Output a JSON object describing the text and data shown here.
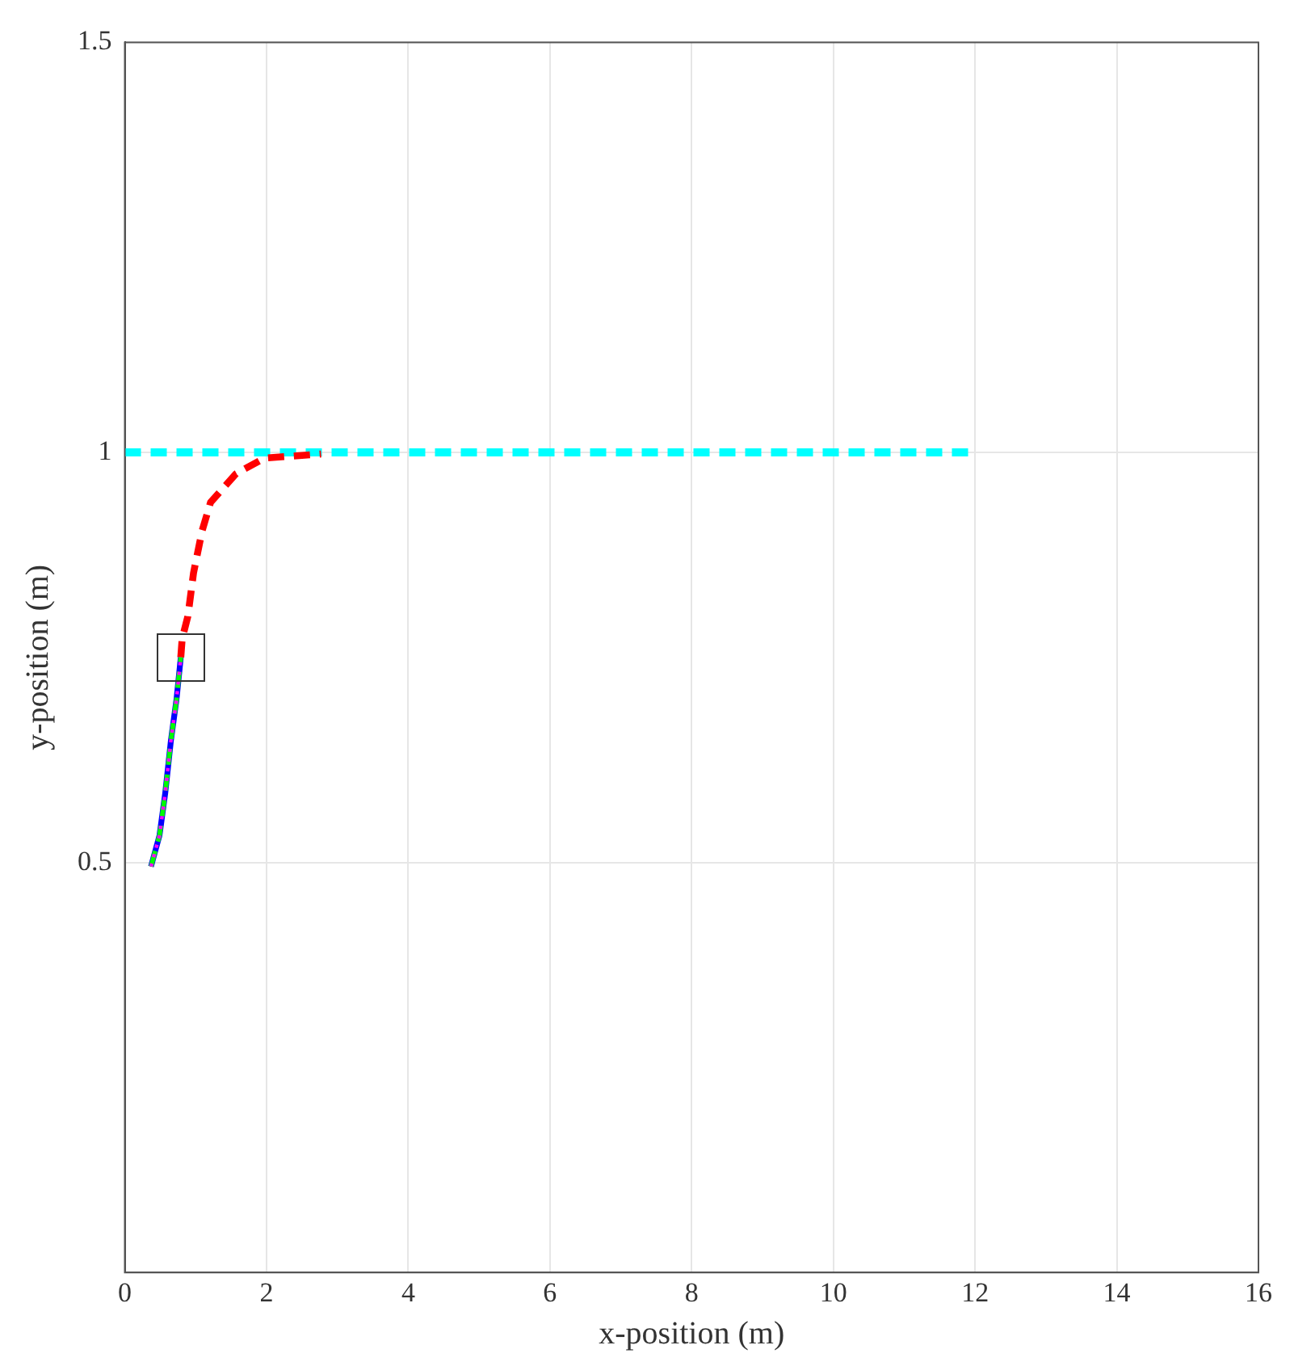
{
  "chart_data": {
    "type": "line",
    "xlabel": "x-position (m)",
    "ylabel": "y-position (m)",
    "xlim": [
      0,
      16
    ],
    "xticks": [
      0,
      2,
      4,
      6,
      8,
      10,
      12,
      14,
      16
    ],
    "ylim": [
      0,
      1.5
    ],
    "yticks": [
      0.5,
      1,
      1.5
    ],
    "grid": true,
    "legend": false,
    "marker": "none",
    "series": [
      {
        "color": "#00ffff",
        "line_style": "dashed",
        "x": [
          0,
          12
        ],
        "values": [
          1,
          1
        ]
      },
      {
        "color": "#ff0000",
        "line_style": "dashed",
        "x": [
          0.79,
          0.81,
          0.89,
          0.97,
          1.09,
          1.21,
          1.57,
          1.97,
          2.77
        ],
        "values": [
          0.75,
          0.773,
          0.8,
          0.853,
          0.904,
          0.939,
          0.974,
          0.993,
          0.998
        ]
      },
      {
        "color": "#0000ff",
        "line_style": "solid",
        "x": [
          0.37,
          0.49,
          0.57,
          0.65,
          0.73,
          0.79
        ],
        "values": [
          0.495,
          0.533,
          0.584,
          0.648,
          0.699,
          0.75
        ]
      },
      {
        "color": "#00ff00",
        "line_style": "dashed",
        "x": [
          0.37,
          0.49,
          0.57,
          0.65,
          0.73,
          0.79
        ],
        "values": [
          0.495,
          0.533,
          0.584,
          0.648,
          0.699,
          0.75
        ]
      },
      {
        "color": "#ff00ff",
        "line_style": "dotted",
        "x": [
          0.37,
          0.49,
          0.57,
          0.65,
          0.73,
          0.79
        ],
        "values": [
          0.495,
          0.533,
          0.584,
          0.648,
          0.699,
          0.75
        ]
      }
    ]
  }
}
